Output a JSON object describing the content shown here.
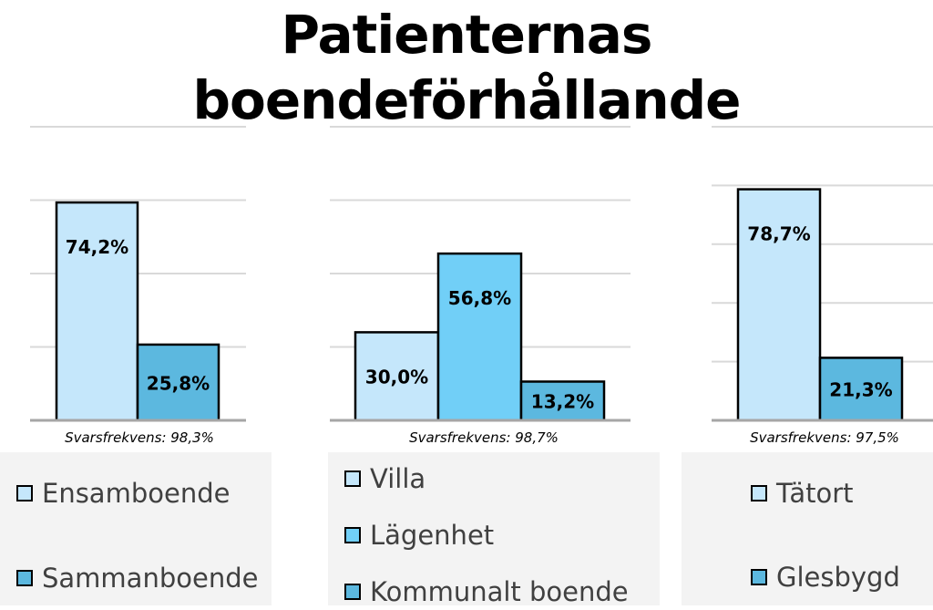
{
  "title": "Patienternas boendeförhållande",
  "colors": {
    "light": "#c5e7fb",
    "mid": "#71cff7",
    "dark": "#5cb8df",
    "border": "#000000",
    "grid": "#d9d9d9",
    "axis": "#a6a6a6"
  },
  "chart_data": [
    {
      "type": "bar",
      "categories": [
        "Ensamboende",
        "Sammanboende"
      ],
      "values": [
        74.2,
        25.8
      ],
      "value_labels": [
        "74,2%",
        "25,8%"
      ],
      "caption": "Svarsfrekvens: 98,3%",
      "legend": [
        "Ensamboende",
        "Sammanboende"
      ],
      "bar_colors": [
        "light",
        "dark"
      ],
      "grid": true
    },
    {
      "type": "bar",
      "categories": [
        "Villa",
        "Lägenhet",
        "Kommunalt boende"
      ],
      "values": [
        30.0,
        56.8,
        13.2
      ],
      "value_labels": [
        "30,0%",
        "56,8%",
        "13,2%"
      ],
      "caption": "Svarsfrekvens: 98,7%",
      "legend": [
        "Villa",
        "Lägenhet",
        "Kommunalt boende"
      ],
      "bar_colors": [
        "light",
        "mid",
        "dark"
      ],
      "grid": true
    },
    {
      "type": "bar",
      "categories": [
        "Tätort",
        "Glesbygd"
      ],
      "values": [
        78.7,
        21.3
      ],
      "value_labels": [
        "78,7%",
        "21,3%"
      ],
      "caption": "Svarsfrekvens: 97,5%",
      "legend": [
        "Tätort",
        "Glesbygd"
      ],
      "bar_colors": [
        "light",
        "dark"
      ],
      "grid": true
    }
  ]
}
